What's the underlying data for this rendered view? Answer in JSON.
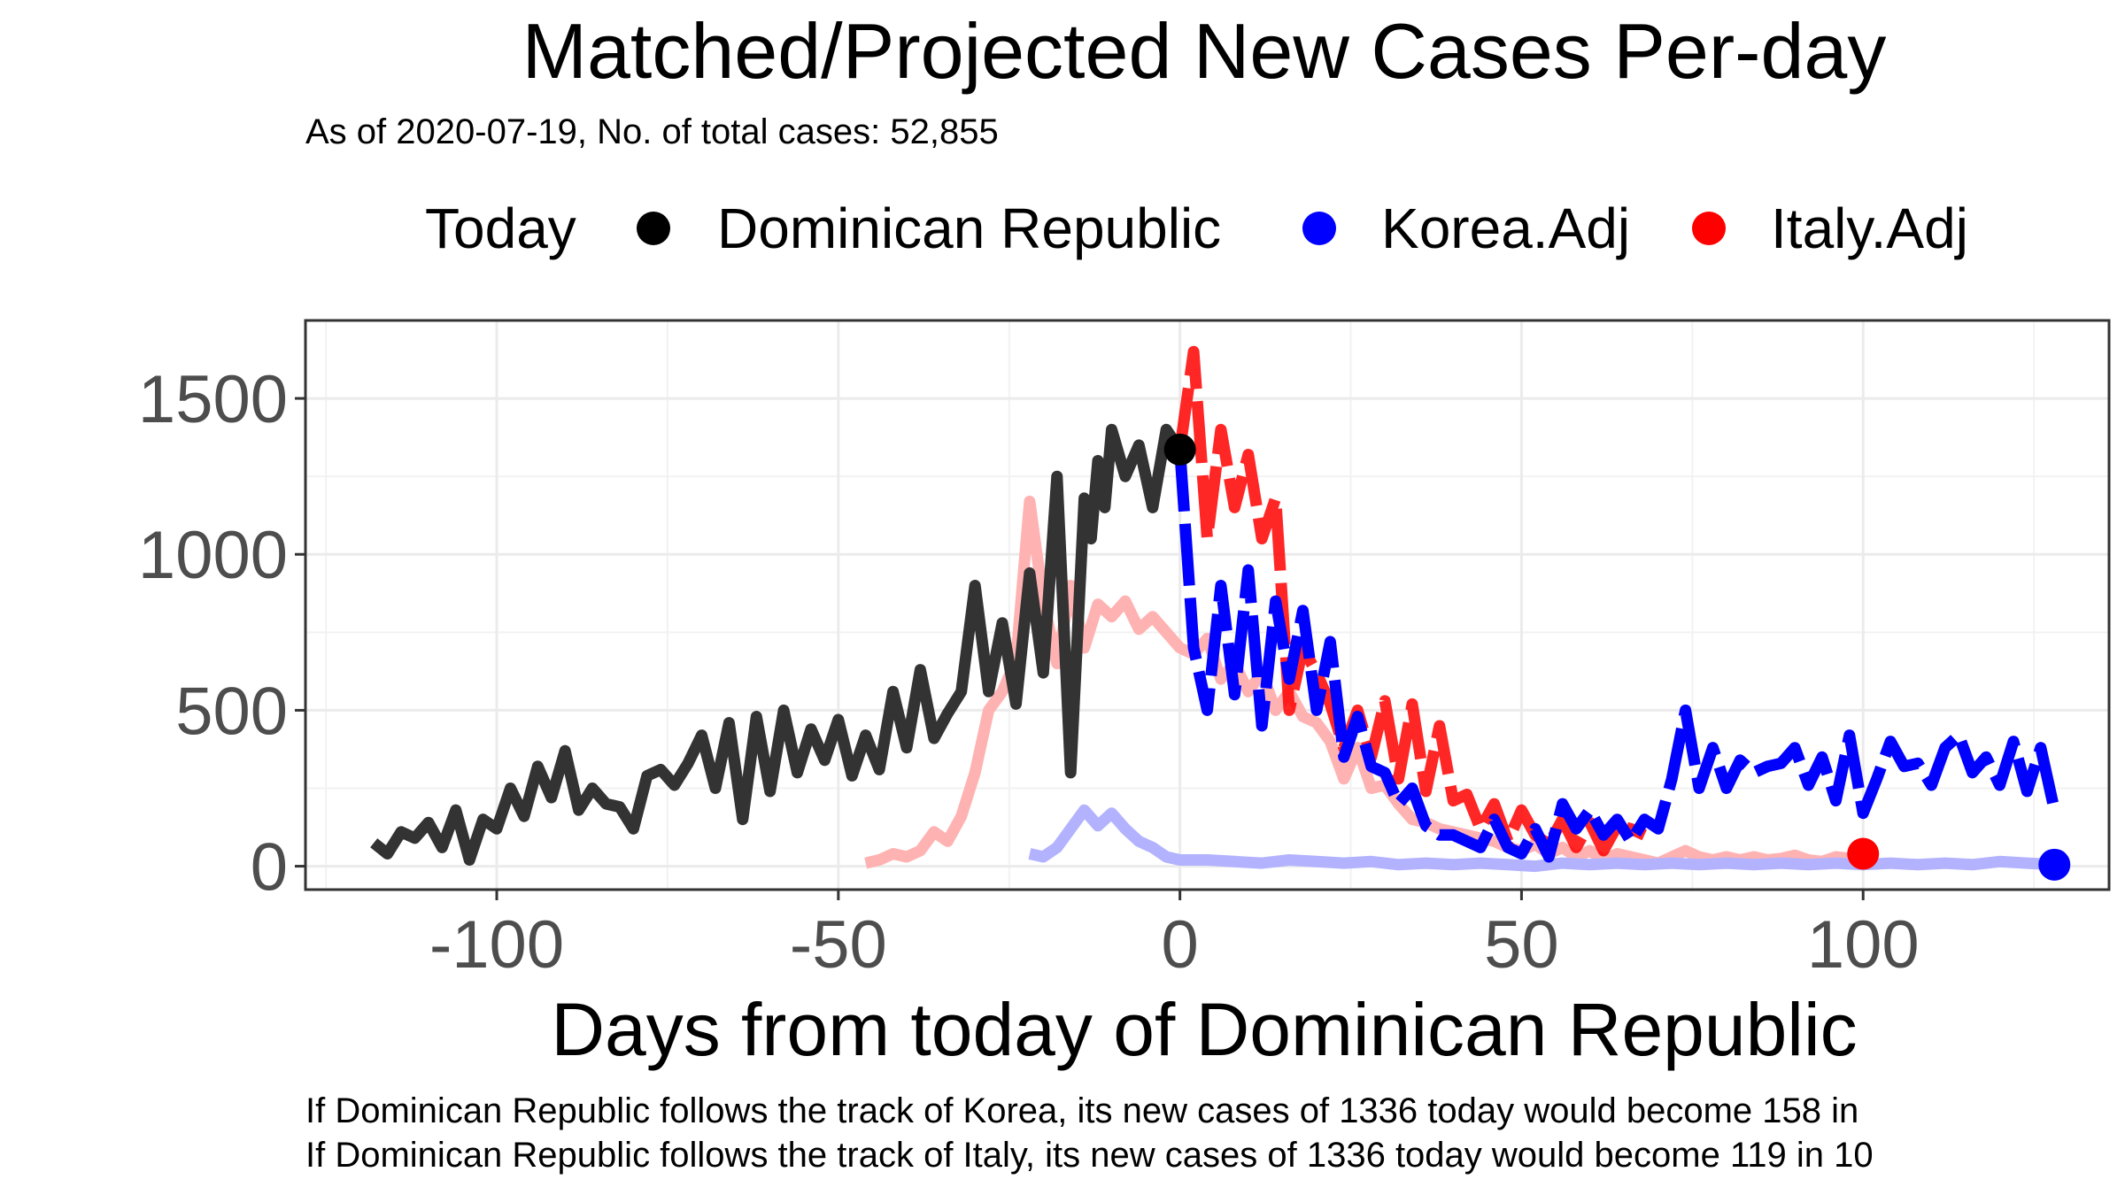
{
  "chart_data": {
    "type": "line",
    "title": "Matched/Projected New Cases Per-day",
    "subtitle": "As of 2020-07-19, No. of total cases: 52,855",
    "xlabel": "Days from today of Dominican Republic",
    "ylabel": "",
    "xlim": [
      -128,
      136
    ],
    "ylim": [
      -75,
      1750
    ],
    "x_ticks": [
      -100,
      -50,
      0,
      50,
      100
    ],
    "y_ticks": [
      0,
      500,
      1000,
      1500
    ],
    "grid": true,
    "legend": {
      "title": "Today",
      "placement": "top",
      "entries": [
        {
          "label": "Dominican Republic",
          "color": "#000000"
        },
        {
          "label": "Korea.Adj",
          "color": "#0000ff"
        },
        {
          "label": "Italy.Adj",
          "color": "#ff0000"
        }
      ]
    },
    "series": [
      {
        "name": "Dominican Republic",
        "color": "#333333",
        "x": [
          -118,
          -116,
          -114,
          -112,
          -110,
          -108,
          -106,
          -104,
          -102,
          -100,
          -98,
          -96,
          -94,
          -92,
          -90,
          -88,
          -86,
          -84,
          -82,
          -80,
          -78,
          -76,
          -74,
          -72,
          -70,
          -68,
          -66,
          -64,
          -62,
          -60,
          -58,
          -56,
          -54,
          -52,
          -50,
          -48,
          -46,
          -44,
          -42,
          -40,
          -38,
          -36,
          -34,
          -32,
          -30,
          -28,
          -26,
          -24,
          -22,
          -20,
          -18,
          -16,
          -14,
          -13,
          -12,
          -11,
          -10,
          -8,
          -6,
          -4,
          -2,
          0
        ],
        "y": [
          75,
          40,
          110,
          90,
          140,
          60,
          180,
          20,
          150,
          120,
          250,
          160,
          320,
          220,
          370,
          180,
          250,
          200,
          190,
          120,
          290,
          310,
          260,
          330,
          420,
          250,
          460,
          150,
          480,
          240,
          500,
          300,
          440,
          340,
          470,
          290,
          420,
          310,
          560,
          380,
          630,
          410,
          490,
          560,
          900,
          560,
          780,
          520,
          940,
          620,
          1250,
          300,
          1180,
          1050,
          1300,
          1150,
          1400,
          1250,
          1350,
          1150,
          1400,
          1336
        ]
      },
      {
        "name": "Korea.Adj",
        "color": "#0000ff",
        "x": [
          0,
          2,
          4,
          6,
          8,
          10,
          12,
          14,
          16,
          18,
          20,
          22,
          24,
          26,
          28,
          30,
          32,
          34,
          36,
          38,
          40,
          42,
          44,
          46,
          48,
          50,
          52,
          54,
          56,
          58,
          60,
          62,
          64,
          66,
          68,
          70,
          72,
          74,
          76,
          78,
          80,
          82,
          84,
          86,
          88,
          90,
          92,
          94,
          96,
          98,
          100,
          102,
          104,
          106,
          108,
          110,
          112,
          114,
          116,
          118,
          120,
          122,
          124,
          126,
          128
        ],
        "y": [
          1336,
          700,
          500,
          900,
          550,
          950,
          450,
          850,
          600,
          820,
          500,
          720,
          350,
          480,
          320,
          300,
          200,
          250,
          130,
          100,
          100,
          80,
          60,
          150,
          60,
          40,
          120,
          30,
          200,
          120,
          180,
          100,
          150,
          80,
          150,
          120,
          280,
          500,
          250,
          380,
          250,
          340,
          300,
          320,
          330,
          380,
          260,
          350,
          210,
          420,
          170,
          280,
          400,
          320,
          330,
          260,
          380,
          420,
          300,
          350,
          260,
          400,
          240,
          380,
          180
        ]
      },
      {
        "name": "Italy.Adj",
        "color": "#ff0000",
        "x": [
          0,
          2,
          4,
          6,
          8,
          10,
          12,
          14,
          16,
          18,
          20,
          22,
          24,
          26,
          28,
          30,
          32,
          34,
          36,
          38,
          40,
          42,
          44,
          46,
          48,
          50,
          52,
          54,
          56,
          58,
          60,
          62,
          64,
          66,
          68
        ],
        "y": [
          1336,
          1650,
          1050,
          1400,
          1150,
          1320,
          1050,
          1180,
          500,
          700,
          620,
          520,
          380,
          500,
          350,
          530,
          280,
          520,
          240,
          450,
          210,
          230,
          120,
          200,
          80,
          180,
          100,
          70,
          150,
          60,
          140,
          50,
          130,
          120,
          100
        ]
      },
      {
        "name": "",
        "color": "#ffb2b2",
        "x": [
          -46,
          -44,
          -42,
          -40,
          -38,
          -36,
          -34,
          -32,
          -30,
          -28,
          -26,
          -24,
          -22,
          -20,
          -18,
          -16,
          -14,
          -12,
          -10,
          -8,
          -6,
          -4,
          -2,
          0,
          2,
          4,
          6,
          8,
          10,
          12,
          14,
          16,
          18,
          20,
          22,
          24,
          26,
          28,
          30,
          32,
          34,
          36,
          38,
          40,
          42,
          44,
          46,
          48,
          50,
          52,
          54,
          56,
          58,
          60,
          62,
          64,
          66,
          68,
          70,
          72,
          74,
          76,
          78,
          80,
          82,
          84,
          86,
          88,
          90,
          92,
          94,
          96,
          98,
          100
        ],
        "y": [
          10,
          20,
          40,
          30,
          50,
          110,
          80,
          160,
          300,
          500,
          560,
          660,
          1170,
          850,
          650,
          900,
          700,
          840,
          800,
          850,
          760,
          800,
          750,
          700,
          680,
          730,
          600,
          650,
          560,
          620,
          500,
          560,
          480,
          460,
          400,
          280,
          380,
          250,
          260,
          200,
          150,
          140,
          120,
          110,
          100,
          90,
          80,
          60,
          50,
          70,
          40,
          60,
          30,
          50,
          20,
          40,
          30,
          20,
          10,
          30,
          50,
          30,
          20,
          30,
          20,
          30,
          20,
          25,
          35,
          20,
          15,
          30,
          25,
          40
        ]
      },
      {
        "name": "",
        "color": "#b2b2ff",
        "x": [
          -22,
          -20,
          -18,
          -16,
          -14,
          -12,
          -10,
          -8,
          -6,
          -4,
          -2,
          0,
          4,
          8,
          12,
          16,
          20,
          24,
          28,
          32,
          36,
          40,
          44,
          48,
          52,
          56,
          60,
          64,
          68,
          72,
          76,
          80,
          84,
          88,
          92,
          96,
          100,
          104,
          108,
          112,
          116,
          120,
          124,
          128
        ],
        "y": [
          40,
          30,
          60,
          120,
          180,
          130,
          170,
          120,
          80,
          60,
          30,
          20,
          20,
          15,
          10,
          20,
          15,
          10,
          15,
          5,
          10,
          5,
          10,
          5,
          0,
          10,
          5,
          10,
          5,
          10,
          5,
          10,
          5,
          10,
          5,
          10,
          5,
          10,
          5,
          10,
          5,
          15,
          10,
          5
        ]
      }
    ],
    "today_points": [
      {
        "x": 0,
        "y": 1336,
        "color": "#000000"
      },
      {
        "x": 100,
        "y": 40,
        "color": "#ff0000"
      },
      {
        "x": 128,
        "y": 5,
        "color": "#0000ff"
      }
    ],
    "captions": [
      "If Dominican Republic follows the track of Korea, its new cases of 1336 today would become 158 in",
      "If Dominican Republic follows the track of Italy, its new cases of 1336 today would become 119 in 10"
    ]
  }
}
